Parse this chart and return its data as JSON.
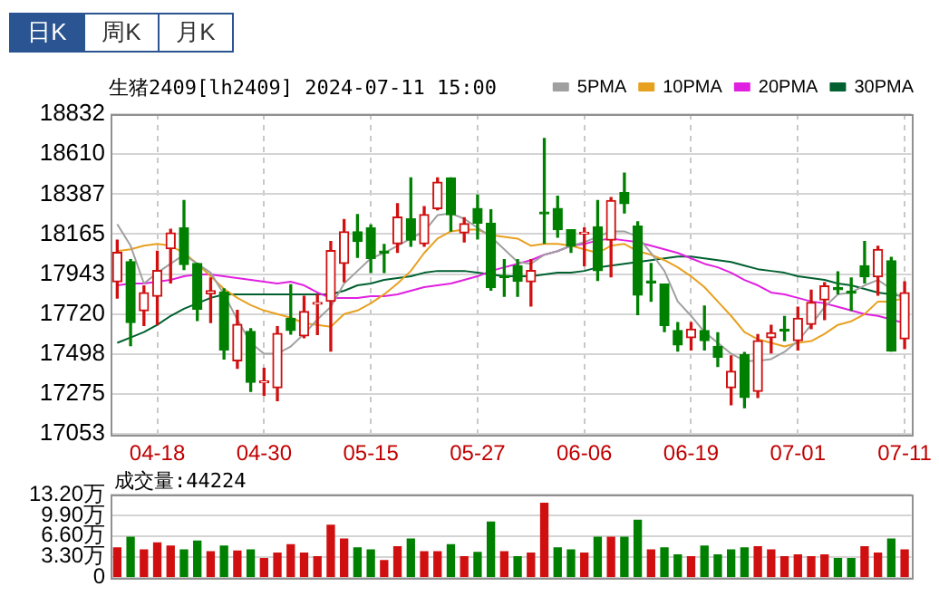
{
  "chart_data": [
    {
      "type": "candlestick",
      "title": "生猪2409[lh2409] 2024-07-11 15:00",
      "annotations": [
        "日K",
        "周K",
        "月K"
      ],
      "categories": [
        null,
        null,
        null,
        "04-18",
        null,
        null,
        null,
        null,
        null,
        null,
        null,
        "04-30",
        null,
        null,
        null,
        null,
        null,
        null,
        null,
        "05-15",
        null,
        null,
        null,
        null,
        null,
        null,
        null,
        "05-27",
        null,
        null,
        null,
        null,
        null,
        null,
        null,
        "06-06",
        null,
        null,
        null,
        null,
        null,
        null,
        null,
        "06-19",
        null,
        null,
        null,
        null,
        null,
        null,
        null,
        "07-01",
        null,
        null,
        null,
        null,
        null,
        null,
        null,
        "07-11"
      ],
      "ohlc": [
        [
          17900,
          18131,
          17809,
          18063
        ],
        [
          18012,
          18023,
          17545,
          17673
        ],
        [
          17738,
          17877,
          17657,
          17839
        ],
        [
          17819,
          18070,
          17663,
          17962
        ],
        [
          18084,
          18192,
          17894,
          18172
        ],
        [
          18199,
          18351,
          17968,
          17995
        ],
        [
          18002,
          18002,
          17684,
          17748
        ],
        [
          17833,
          17921,
          17673,
          17850
        ],
        [
          17843,
          17860,
          17470,
          17521
        ],
        [
          17460,
          17741,
          17419,
          17663
        ],
        [
          17623,
          17639,
          17290,
          17341
        ],
        [
          17338,
          17419,
          17267,
          17345
        ],
        [
          17311,
          17650,
          17239,
          17612
        ],
        [
          17697,
          17883,
          17609,
          17629
        ],
        [
          17599,
          17819,
          17589,
          17734
        ],
        [
          17775,
          17826,
          17606,
          17782
        ],
        [
          17792,
          18124,
          17514,
          18073
        ],
        [
          18002,
          18246,
          17900,
          18178
        ],
        [
          18178,
          18273,
          18036,
          18124
        ],
        [
          18199,
          18216,
          17951,
          18029
        ],
        [
          18067,
          18107,
          17951,
          18060
        ],
        [
          18111,
          18334,
          18063,
          18260
        ],
        [
          18250,
          18477,
          18097,
          18131
        ],
        [
          18111,
          18317,
          18097,
          18273
        ],
        [
          18307,
          18477,
          18300,
          18453
        ],
        [
          18477,
          18477,
          18182,
          18273
        ],
        [
          18172,
          18256,
          18121,
          18223
        ],
        [
          18307,
          18382,
          18138,
          18226
        ],
        [
          18226,
          18300,
          17853,
          17867
        ],
        [
          17931,
          18023,
          17819,
          17924
        ],
        [
          17989,
          18023,
          17819,
          17904
        ],
        [
          17900,
          18023,
          17765,
          17962
        ],
        [
          18283,
          18697,
          18114,
          18277
        ],
        [
          18307,
          18375,
          18148,
          18189
        ],
        [
          18189,
          18189,
          18063,
          18097
        ],
        [
          18165,
          18199,
          17989,
          18172
        ],
        [
          18206,
          18351,
          17907,
          17962
        ],
        [
          18131,
          18368,
          17928,
          18351
        ],
        [
          18395,
          18504,
          18283,
          18334
        ],
        [
          18209,
          18233,
          17717,
          17826
        ],
        [
          17904,
          18002,
          17792,
          17894
        ],
        [
          17887,
          17887,
          17623,
          17657
        ],
        [
          17629,
          17673,
          17514,
          17548
        ],
        [
          17589,
          17673,
          17521,
          17636
        ],
        [
          17629,
          17765,
          17521,
          17572
        ],
        [
          17541,
          17616,
          17429,
          17480
        ],
        [
          17311,
          17487,
          17216,
          17402
        ],
        [
          17494,
          17507,
          17199,
          17256
        ],
        [
          17290,
          17606,
          17256,
          17572
        ],
        [
          17589,
          17657,
          17504,
          17616
        ],
        [
          17633,
          17707,
          17572,
          17626
        ],
        [
          17572,
          17758,
          17521,
          17697
        ],
        [
          17663,
          17853,
          17639,
          17785
        ],
        [
          17799,
          17894,
          17690,
          17877
        ],
        [
          17863,
          17955,
          17833,
          17856
        ],
        [
          17843,
          17921,
          17741,
          17836
        ],
        [
          17989,
          18124,
          17894,
          17928
        ],
        [
          17928,
          18097,
          17826,
          18080
        ],
        [
          18016,
          18036,
          17514,
          17514
        ],
        [
          17582,
          17900,
          17528,
          17839
        ]
      ],
      "series": [
        {
          "name": "5PMA",
          "type": "line",
          "color": "#a0a0a0",
          "values": [
            18220,
            18100,
            17890,
            17950,
            18000,
            18050,
            18000,
            17950,
            17830,
            17690,
            17560,
            17500,
            17500,
            17540,
            17610,
            17690,
            17760,
            17890,
            17960,
            18030,
            18060,
            18100,
            18140,
            18180,
            18270,
            18280,
            18250,
            18200,
            18150,
            18080,
            18010,
            18000,
            18050,
            18070,
            18100,
            18120,
            18150,
            18180,
            18180,
            18150,
            18060,
            17960,
            17790,
            17710,
            17620,
            17560,
            17500,
            17460,
            17460,
            17470,
            17510,
            17570,
            17660,
            17760,
            17830,
            17840,
            17880,
            17910,
            17860,
            17790
          ]
        },
        {
          "name": "10PMA",
          "type": "line",
          "color": "#e8a020",
          "values": [
            18070,
            18080,
            18100,
            18110,
            18100,
            18060,
            18000,
            17930,
            17860,
            17810,
            17770,
            17740,
            17720,
            17700,
            17670,
            17660,
            17650,
            17720,
            17740,
            17780,
            17830,
            17890,
            17960,
            18060,
            18140,
            18180,
            18190,
            18190,
            18160,
            18150,
            18140,
            18100,
            18110,
            18110,
            18100,
            18080,
            18060,
            18100,
            18110,
            18070,
            18050,
            18020,
            17980,
            17930,
            17870,
            17790,
            17710,
            17620,
            17580,
            17560,
            17540,
            17560,
            17570,
            17610,
            17660,
            17680,
            17720,
            17790,
            17790,
            17810
          ]
        },
        {
          "name": "20PMA",
          "type": "line",
          "color": "#e020e0",
          "values": [
            17880,
            17890,
            17890,
            17900,
            17910,
            17930,
            17940,
            17940,
            17930,
            17920,
            17910,
            17900,
            17890,
            17900,
            17880,
            17840,
            17810,
            17810,
            17810,
            17820,
            17820,
            17830,
            17850,
            17870,
            17880,
            17890,
            17910,
            17930,
            17960,
            17980,
            18000,
            18020,
            18050,
            18070,
            18100,
            18110,
            18130,
            18140,
            18130,
            18120,
            18100,
            18080,
            18060,
            18030,
            18000,
            17980,
            17950,
            17910,
            17880,
            17840,
            17830,
            17810,
            17790,
            17780,
            17760,
            17740,
            17720,
            17710,
            17690,
            17670
          ]
        },
        {
          "name": "30PMA",
          "type": "line",
          "color": "#006030",
          "values": [
            17560,
            17590,
            17620,
            17660,
            17710,
            17750,
            17780,
            17810,
            17830,
            17830,
            17830,
            17830,
            17830,
            17830,
            17830,
            17830,
            17830,
            17850,
            17880,
            17890,
            17910,
            17920,
            17930,
            17950,
            17960,
            17960,
            17960,
            17950,
            17940,
            17930,
            17930,
            17930,
            17940,
            17950,
            17950,
            17960,
            17980,
            17990,
            18000,
            18010,
            18020,
            18030,
            18040,
            18040,
            18030,
            18020,
            18010,
            17990,
            17970,
            17960,
            17950,
            17930,
            17920,
            17910,
            17890,
            17880,
            17860,
            17840,
            17830,
            17820
          ]
        }
      ],
      "ylim": [
        17053,
        18832
      ],
      "yticks": [
        17053,
        17275,
        17498,
        17720,
        17943,
        18165,
        18387,
        18610,
        18832
      ],
      "grid": true,
      "legend": "top right",
      "marker": "none"
    },
    {
      "type": "bar",
      "title": "成交量:44224",
      "categories": [
        null,
        null,
        null,
        null,
        null,
        null,
        null,
        null,
        null,
        null,
        null,
        null,
        null,
        null,
        null,
        null,
        null,
        null,
        null,
        null,
        null,
        null,
        null,
        null,
        null,
        null,
        null,
        null,
        null,
        null,
        null,
        null,
        null,
        null,
        null,
        null,
        null,
        null,
        null,
        null,
        null,
        null,
        null,
        null,
        null,
        null,
        null,
        null,
        null,
        null,
        null,
        null,
        null,
        null,
        null,
        null,
        null,
        null,
        null,
        null
      ],
      "values": [
        4.7,
        6.4,
        4.4,
        5.5,
        5.0,
        4.4,
        5.8,
        4.1,
        5.0,
        4.2,
        4.4,
        3.0,
        3.9,
        5.2,
        3.9,
        3.3,
        8.3,
        6.1,
        4.7,
        4.4,
        2.7,
        4.9,
        6.1,
        4.1,
        4.1,
        5.2,
        3.3,
        4.0,
        8.8,
        4.1,
        3.3,
        3.9,
        11.8,
        4.7,
        4.4,
        3.9,
        6.4,
        6.4,
        6.4,
        9.1,
        4.4,
        4.7,
        3.6,
        3.3,
        5.0,
        3.6,
        4.4,
        4.7,
        4.9,
        4.4,
        3.3,
        3.6,
        3.3,
        3.6,
        3.0,
        3.0,
        4.9,
        3.9,
        6.1,
        4.4
      ],
      "colors": [
        "#d01010",
        "#008000",
        "#d01010",
        "#d01010",
        "#d01010",
        "#008000",
        "#008000",
        "#d01010",
        "#008000",
        "#d01010",
        "#008000",
        "#d01010",
        "#d01010",
        "#d01010",
        "#d01010",
        "#d01010",
        "#d01010",
        "#d01010",
        "#008000",
        "#008000",
        "#d01010",
        "#d01010",
        "#008000",
        "#d01010",
        "#d01010",
        "#008000",
        "#d01010",
        "#008000",
        "#008000",
        "#d01010",
        "#008000",
        "#d01010",
        "#d01010",
        "#008000",
        "#008000",
        "#d01010",
        "#008000",
        "#d01010",
        "#008000",
        "#008000",
        "#d01010",
        "#008000",
        "#008000",
        "#d01010",
        "#008000",
        "#008000",
        "#008000",
        "#008000",
        "#d01010",
        "#d01010",
        "#d01010",
        "#d01010",
        "#d01010",
        "#d01010",
        "#008000",
        "#008000",
        "#d01010",
        "#d01010",
        "#008000",
        "#d01010"
      ],
      "ylim": [
        0,
        13.2
      ],
      "yticks": [
        0,
        {
          "value": 3.3,
          "label": "3.30万"
        },
        {
          "value": 6.6,
          "label": "6.60万"
        },
        {
          "value": 9.9,
          "label": "9.90万"
        },
        {
          "value": 13.2,
          "label": "13.20万"
        }
      ],
      "grid": "y",
      "tick_labels": "y"
    }
  ]
}
